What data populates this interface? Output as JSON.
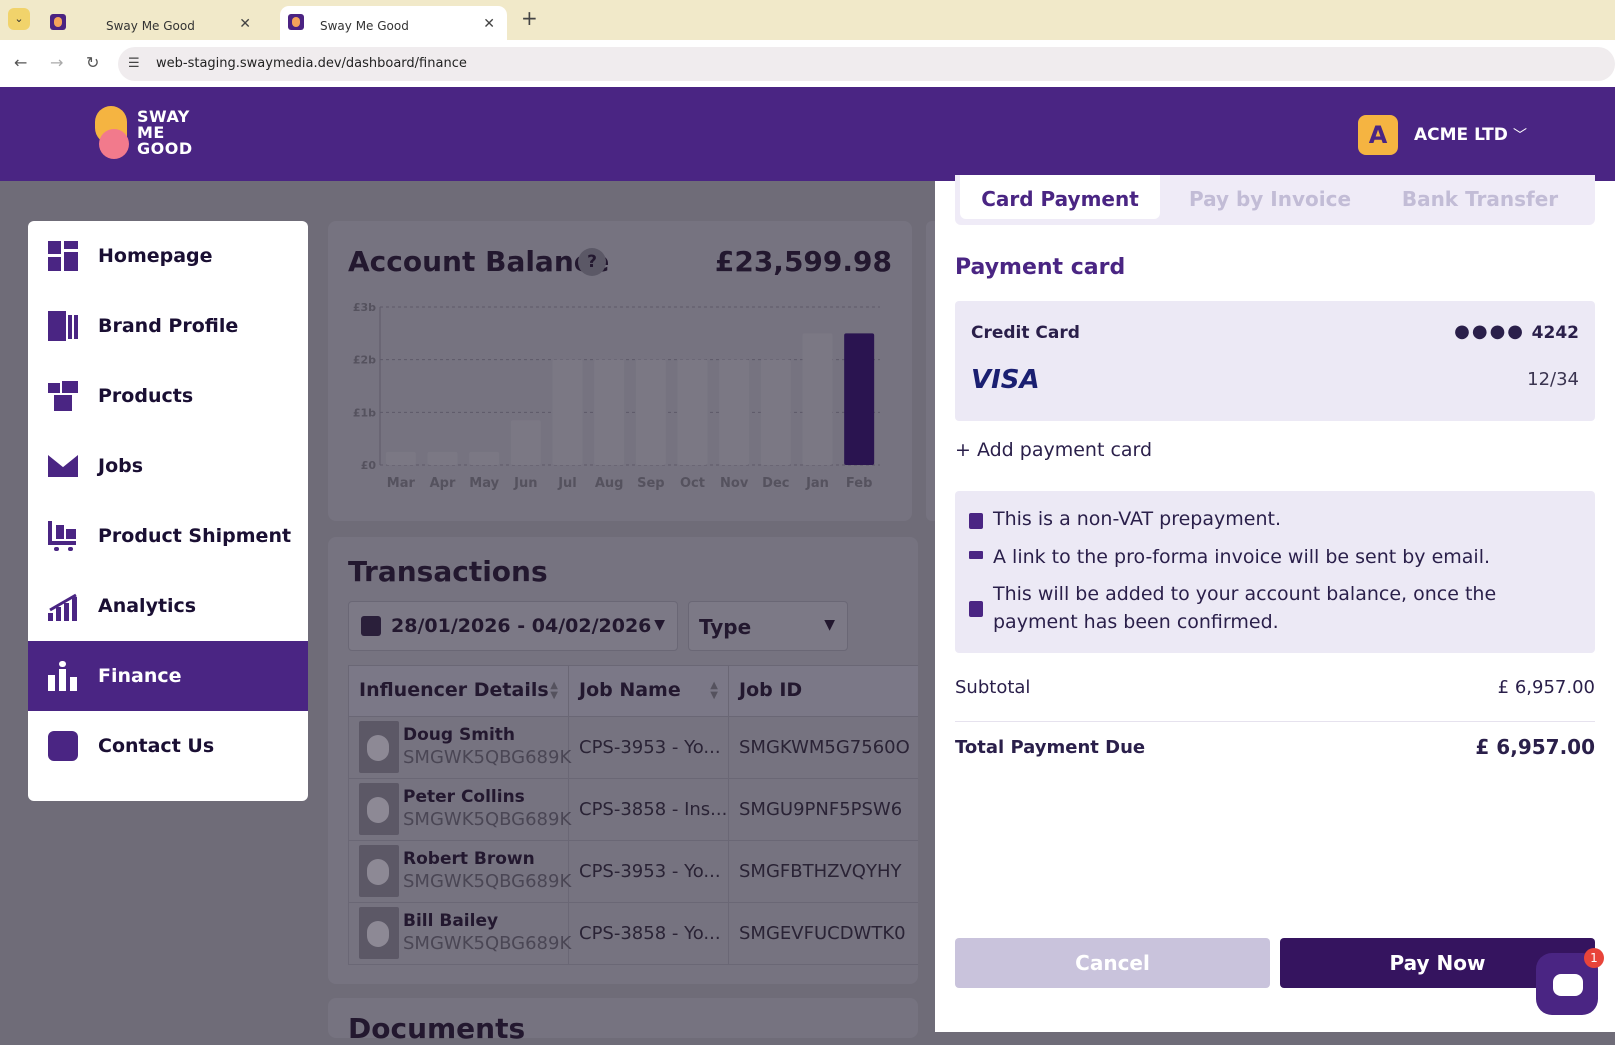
{
  "browser": {
    "tabs": [
      {
        "title": "Sway Me Good"
      },
      {
        "title": "Sway Me Good"
      }
    ],
    "url": "web-staging.swaymedia.dev/dashboard/finance"
  },
  "header": {
    "logo_line1": "SWAY",
    "logo_line2": "ME",
    "logo_line3": "GOOD",
    "account_initial": "A",
    "account_name": "ACME LTD"
  },
  "sidebar": {
    "items": [
      {
        "label": "Homepage",
        "icon": "dashboard-icon"
      },
      {
        "label": "Brand Profile",
        "icon": "brand-profile-icon"
      },
      {
        "label": "Products",
        "icon": "products-icon"
      },
      {
        "label": "Jobs",
        "icon": "envelope-icon"
      },
      {
        "label": "Product Shipment",
        "icon": "cart-icon"
      },
      {
        "label": "Analytics",
        "icon": "analytics-icon"
      },
      {
        "label": "Finance",
        "icon": "finance-icon",
        "active": true
      },
      {
        "label": "Contact Us",
        "icon": "headset-icon"
      }
    ]
  },
  "balance": {
    "title": "Account Balance",
    "help": "?",
    "value": "£23,599.98"
  },
  "chart_data": {
    "type": "bar",
    "categories": [
      "Mar",
      "Apr",
      "May",
      "Jun",
      "Jul",
      "Aug",
      "Sep",
      "Oct",
      "Nov",
      "Dec",
      "Jan",
      "Feb"
    ],
    "values": [
      0.25,
      0.25,
      0.25,
      0.85,
      2.0,
      2.0,
      2.0,
      2.0,
      2.0,
      2.0,
      2.5,
      2.5
    ],
    "yticks": [
      "£0",
      "£1b",
      "£2b",
      "£3b"
    ],
    "ylim": [
      0,
      3
    ],
    "highlight_index": 11,
    "bar_color": "#7b7884",
    "highlight_color": "#2a1450",
    "grid": true
  },
  "transactions": {
    "title": "Transactions",
    "date_range": "28/01/2026 - 04/02/2026",
    "type_label": "Type",
    "columns": [
      "Influencer Details",
      "Job Name",
      "Job ID"
    ],
    "rows": [
      {
        "name": "Doug Smith",
        "sub": "SMGWK5QBG689K",
        "job": "CPS-3953 - Yo...",
        "job_id": "SMGKWM5G7560O"
      },
      {
        "name": "Peter Collins",
        "sub": "SMGWK5QBG689K",
        "job": "CPS-3858 - Ins...",
        "job_id": "SMGU9PNF5PSW6"
      },
      {
        "name": "Robert Brown",
        "sub": "SMGWK5QBG689K",
        "job": "CPS-3953 - Yo...",
        "job_id": "SMGFBTHZVQYHY"
      },
      {
        "name": "Bill Bailey",
        "sub": "SMGWK5QBG689K",
        "job": "CPS-3858 - Yo...",
        "job_id": "SMGEVFUCDWTK0"
      }
    ]
  },
  "documents": {
    "title": "Documents"
  },
  "payment": {
    "tabs": [
      "Card Payment",
      "Pay by Invoice",
      "Bank Transfer"
    ],
    "section_title": "Payment card",
    "card_type": "Credit Card",
    "card_mask": "●●●●",
    "card_last4": "4242",
    "card_brand": "VISA",
    "card_expiry": "12/34",
    "add_card": "+ Add payment card",
    "info": [
      "This is a non-VAT prepayment.",
      "A link to the pro-forma invoice will be sent by email.",
      "This will be added to your account balance, once the payment has been confirmed."
    ],
    "subtotal_label": "Subtotal",
    "subtotal_value": "£ 6,957.00",
    "total_label": "Total Payment Due",
    "total_value": "£ 6,957.00",
    "cancel": "Cancel",
    "pay": "Pay Now"
  },
  "chat": {
    "badge": "1"
  },
  "colors": {
    "brand_purple": "#4a2583",
    "accent_yellow": "#f5b441",
    "accent_pink": "#f27a8c"
  }
}
